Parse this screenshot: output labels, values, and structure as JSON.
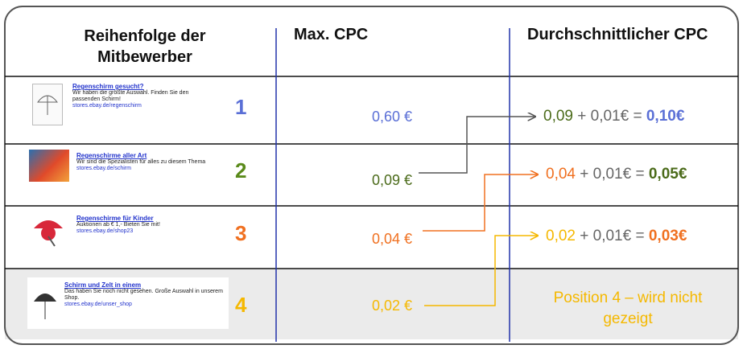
{
  "header": {
    "columns": [
      "Reihenfolge der Mitbewerber",
      "Max. CPC",
      "Durchschnittlicher CPC"
    ]
  },
  "rows": [
    {
      "ad": {
        "title": "Regenschirm gesucht?",
        "text": "Wir haben die größte Auswahl.  Finden Sie den passenden Schirm!",
        "url": "stores.ebay.de/regenschirm"
      },
      "rank": "1",
      "max_cpc": "0,60 €",
      "bid": "0,09",
      "increment": "+ 0,01€ =",
      "result": "0,10€"
    },
    {
      "ad": {
        "title": "Regenschirme aller Art",
        "text": "Wir sind die Spezialisten für alles zu diesem Thema",
        "url": "stores.ebay.de/schirm"
      },
      "rank": "2",
      "max_cpc": "0,09 €",
      "bid": "0,04",
      "increment": "+ 0,01€ =",
      "result": "0,05€"
    },
    {
      "ad": {
        "title": "Regenschirme für Kinder",
        "text": "Auktionen ab € 1,- Bieten Sie mit!",
        "url": "stores.ebay.de/shop23"
      },
      "rank": "3",
      "max_cpc": "0,04 €",
      "bid": "0,02",
      "increment": "+ 0,01€ =",
      "result": "0,03€"
    },
    {
      "ad": {
        "title": "Schirm und Zelt in einem",
        "text": "Das haben Sie noch nicht gesehen. Große Auswahl in unserem Shop.",
        "url": "stores.ebay.de/unser_shop"
      },
      "rank": "4",
      "max_cpc": "0,02 €",
      "note": "Position 4 – wird nicht gezeigt"
    }
  ]
}
